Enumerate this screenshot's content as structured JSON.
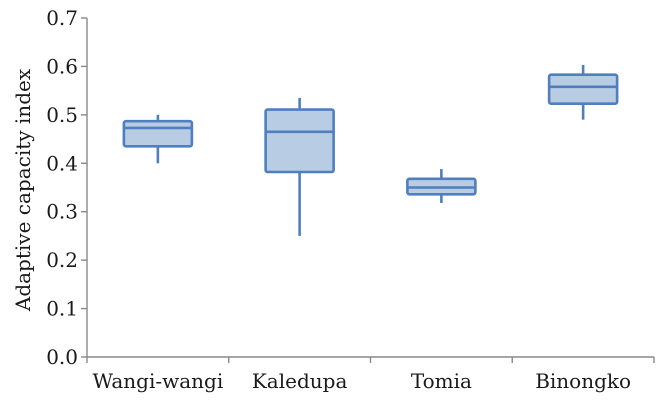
{
  "chart_data": {
    "type": "boxplot",
    "title": "",
    "xlabel": "",
    "ylabel": "Adaptive capacity index",
    "ylim": [
      0.0,
      0.7
    ],
    "yticks": [
      "0.0",
      "0.1",
      "0.2",
      "0.3",
      "0.4",
      "0.5",
      "0.6",
      "0.7"
    ],
    "categories": [
      "Wangi-wangi",
      "Kaledupa",
      "Tomia",
      "Binongko"
    ],
    "boxes": [
      {
        "category": "Wangi-wangi",
        "min": 0.4,
        "q1": 0.435,
        "median": 0.473,
        "q3": 0.487,
        "max": 0.5
      },
      {
        "category": "Kaledupa",
        "min": 0.25,
        "q1": 0.382,
        "median": 0.465,
        "q3": 0.511,
        "max": 0.535
      },
      {
        "category": "Tomia",
        "min": 0.318,
        "q1": 0.336,
        "median": 0.35,
        "q3": 0.368,
        "max": 0.388
      },
      {
        "category": "Binongko",
        "min": 0.49,
        "q1": 0.523,
        "median": 0.558,
        "q3": 0.583,
        "max": 0.603
      }
    ],
    "grid": false,
    "legend": "none",
    "colors": {
      "box_fill": "#b8cce4",
      "box_stroke": "#4f7fbf"
    }
  }
}
